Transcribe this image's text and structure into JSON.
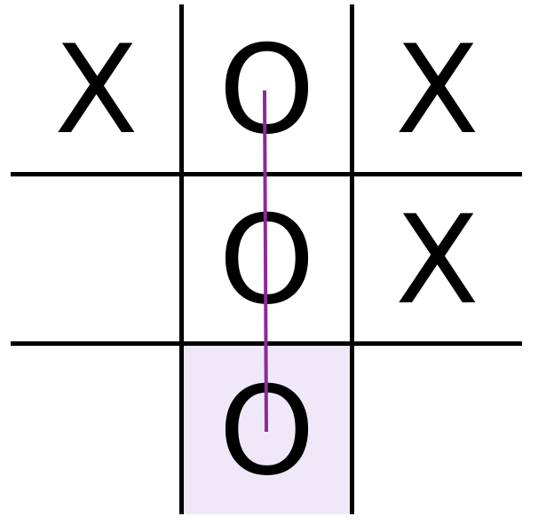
{
  "game": {
    "type": "tic-tac-toe",
    "cells": [
      {
        "row": 0,
        "col": 0,
        "mark": "X",
        "highlighted": false
      },
      {
        "row": 0,
        "col": 1,
        "mark": "O",
        "highlighted": false
      },
      {
        "row": 0,
        "col": 2,
        "mark": "X",
        "highlighted": false
      },
      {
        "row": 1,
        "col": 0,
        "mark": "",
        "highlighted": false
      },
      {
        "row": 1,
        "col": 1,
        "mark": "O",
        "highlighted": false
      },
      {
        "row": 1,
        "col": 2,
        "mark": "X",
        "highlighted": false
      },
      {
        "row": 2,
        "col": 0,
        "mark": "",
        "highlighted": false
      },
      {
        "row": 2,
        "col": 1,
        "mark": "O",
        "highlighted": true
      },
      {
        "row": 2,
        "col": 2,
        "mark": "",
        "highlighted": false
      }
    ],
    "winning_line": {
      "from": {
        "row": 0,
        "col": 1
      },
      "to": {
        "row": 2,
        "col": 1
      },
      "direction": "vertical"
    }
  },
  "colors": {
    "mark": "#000000",
    "grid": "#000000",
    "highlight": "#efe8f8",
    "winning_line": "#8e2a96"
  }
}
